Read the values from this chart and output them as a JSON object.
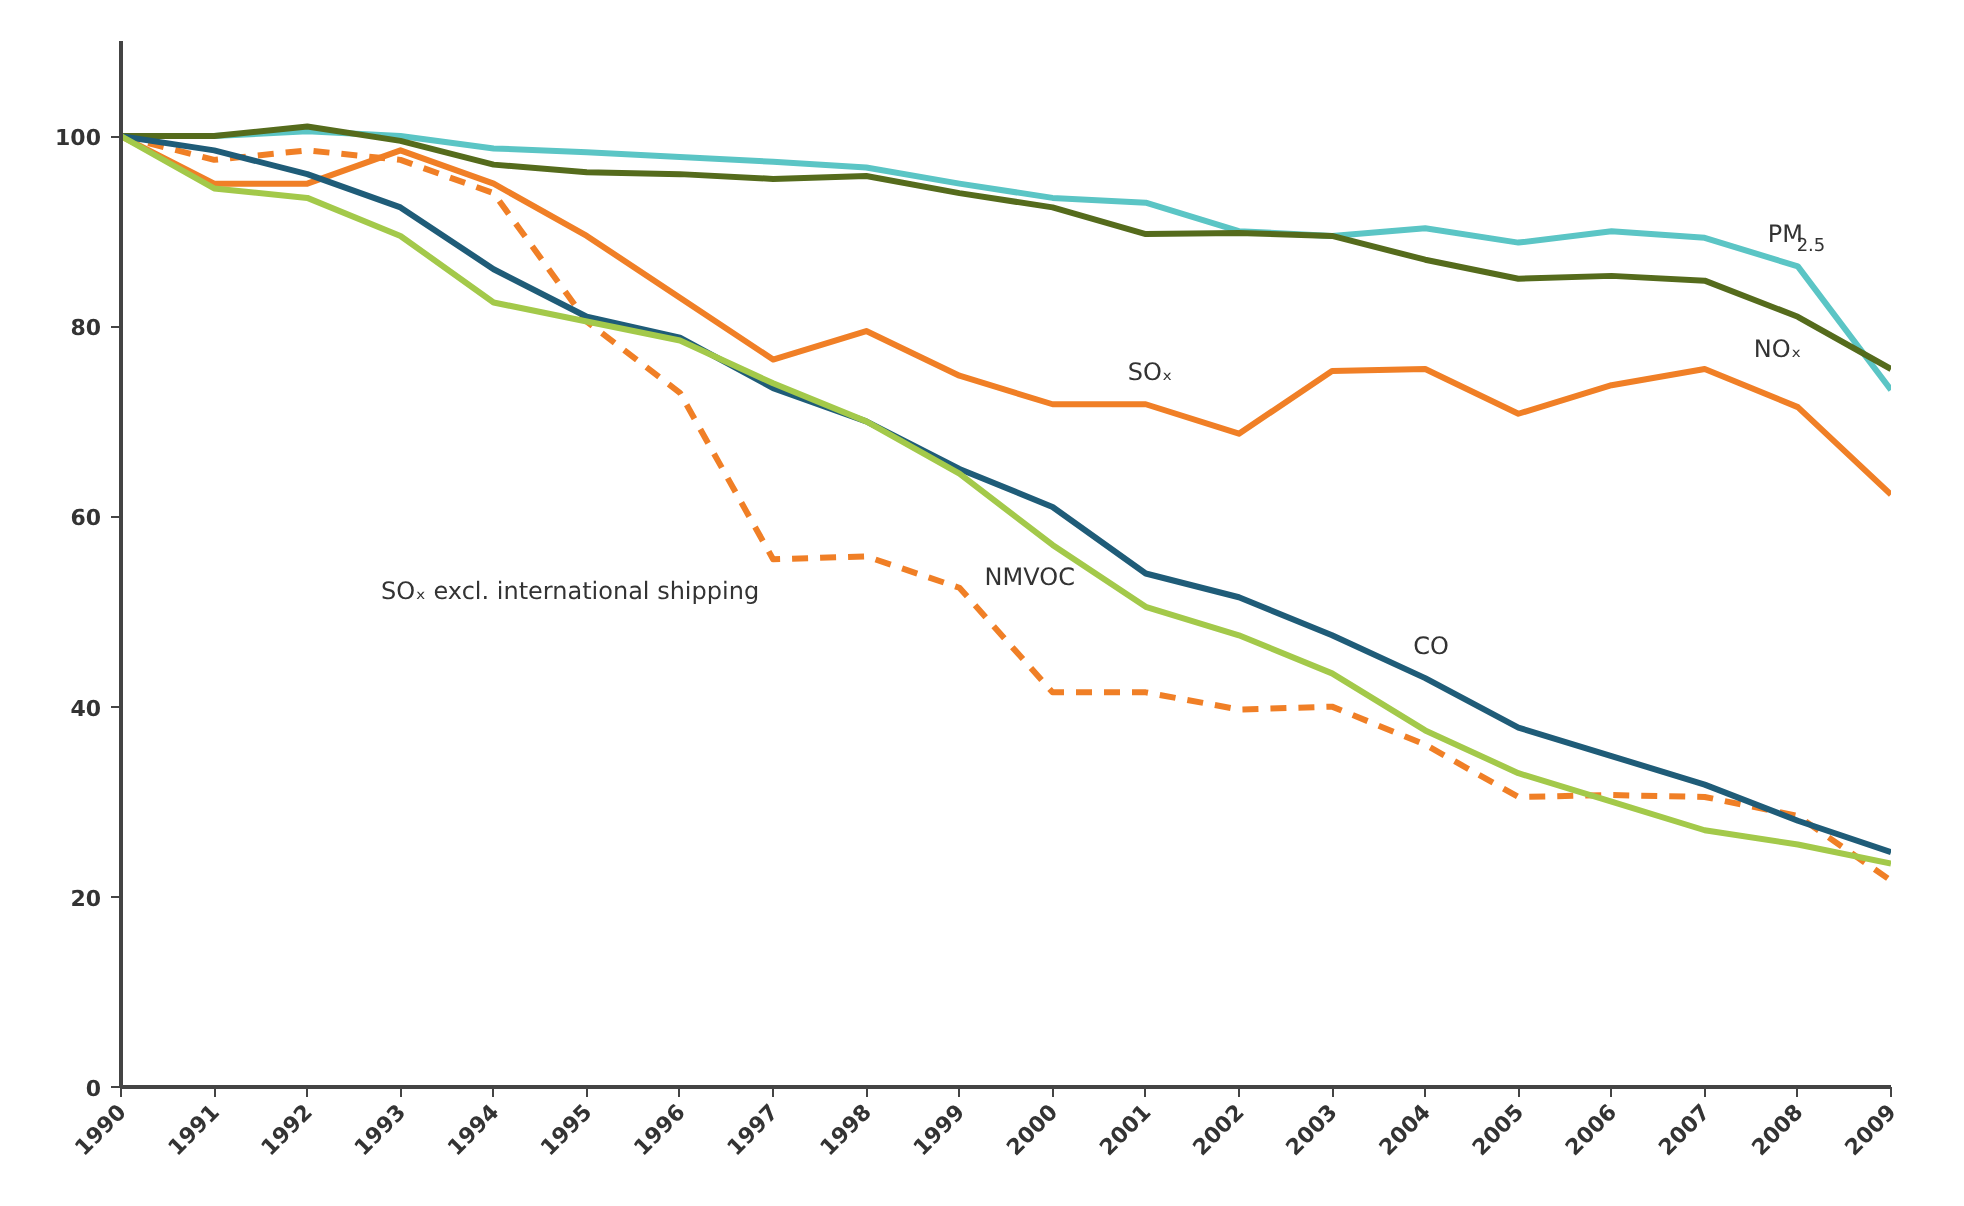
{
  "chart_data": {
    "type": "line",
    "x": [
      1990,
      1991,
      1992,
      1993,
      1994,
      1995,
      1996,
      1997,
      1998,
      1999,
      2000,
      2001,
      2002,
      2003,
      2004,
      2005,
      2006,
      2007,
      2008,
      2009
    ],
    "xlim": [
      1990,
      2009
    ],
    "xticks": [
      1990,
      1991,
      1992,
      1993,
      1994,
      1995,
      1996,
      1997,
      1998,
      1999,
      2000,
      2001,
      2002,
      2003,
      2004,
      2005,
      2006,
      2007,
      2008,
      2009
    ],
    "ylim": [
      0,
      110
    ],
    "yticks": [
      0,
      20,
      40,
      60,
      80,
      100
    ],
    "grid": false,
    "legend": false,
    "marker": "none",
    "series": [
      {
        "name": "PM$_{2.5}$",
        "color": "#5bc5c5",
        "line_style": "solid",
        "values": [
          100,
          100,
          100.5,
          100,
          98.7,
          98.3,
          97.8,
          97.3,
          96.7,
          95,
          93.5,
          93,
          90,
          89.5,
          90.3,
          88.8,
          90,
          89.3,
          86.3,
          73.3
        ]
      },
      {
        "name": "NOₓ",
        "color": "#556b1c",
        "line_style": "solid",
        "values": [
          100,
          100,
          101,
          99.5,
          97,
          96.2,
          96,
          95.5,
          95.8,
          94,
          92.5,
          89.7,
          89.8,
          89.5,
          87,
          85,
          85.3,
          84.8,
          81,
          75.5
        ]
      },
      {
        "name": "SOₓ",
        "color": "#f07f26",
        "line_style": "solid",
        "values": [
          100,
          95,
          95,
          98.5,
          95,
          89.5,
          83,
          76.5,
          79.5,
          74.8,
          71.8,
          71.8,
          68.7,
          75.3,
          75.5,
          70.8,
          73.8,
          75.5,
          71.5,
          62.3
        ]
      },
      {
        "name": "SOₓ excl. international shipping",
        "color": "#f07f26",
        "line_style": "dashed",
        "values": [
          100,
          97.5,
          98.5,
          97.5,
          94,
          80.5,
          73,
          55.5,
          55.8,
          52.5,
          41.5,
          41.5,
          39.7,
          40,
          36,
          30.5,
          30.7,
          30.5,
          28.5,
          21.7
        ]
      },
      {
        "name": "CO",
        "color": "#1f5c78",
        "line_style": "solid",
        "values": [
          100,
          98.5,
          96,
          92.5,
          86,
          81,
          78.8,
          73.5,
          70,
          65,
          61,
          54,
          51.5,
          47.5,
          43,
          37.8,
          34.8,
          31.8,
          28,
          24.7
        ]
      },
      {
        "name": "NMVOC",
        "color": "#a3c94a",
        "line_style": "solid",
        "values": [
          100,
          94.5,
          93.5,
          89.5,
          82.5,
          80.5,
          78.5,
          74,
          70,
          64.5,
          57,
          50.5,
          47.5,
          43.5,
          37.5,
          33,
          30,
          27,
          25.5,
          23.5
        ]
      }
    ]
  }
}
